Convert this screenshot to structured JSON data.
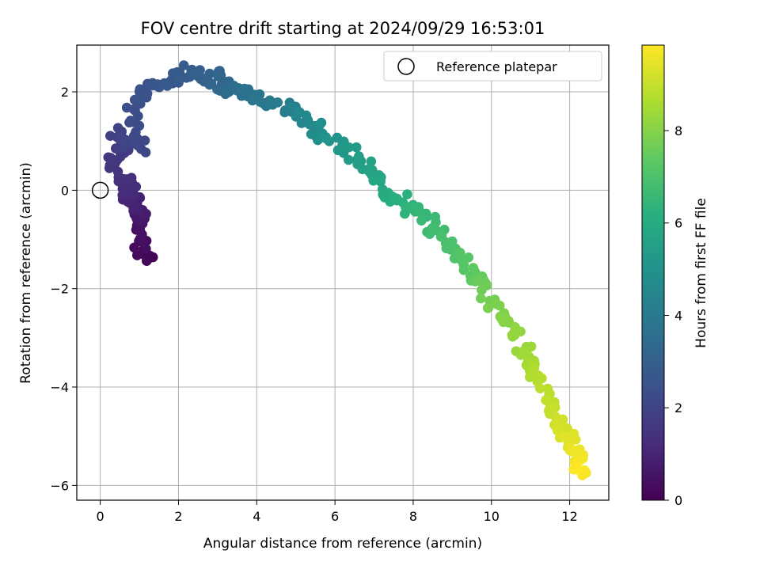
{
  "chart_data": {
    "type": "scatter",
    "title": "FOV centre drift starting at 2024/09/29 16:53:01",
    "xlabel": "Angular distance from reference (arcmin)",
    "ylabel": "Rotation from reference (arcmin)",
    "xlim": [
      -0.6,
      13.0
    ],
    "ylim": [
      -6.3,
      2.95
    ],
    "xticks": [
      0,
      2,
      4,
      6,
      8,
      10,
      12
    ],
    "yticks": [
      -6,
      -4,
      -2,
      0,
      2
    ],
    "grid": true,
    "legend": {
      "position": "top-right",
      "entries": [
        "Reference platepar"
      ]
    },
    "reference_point": {
      "x": 0,
      "y": 0
    },
    "colorbar": {
      "label": "Hours from first FF file",
      "range": [
        0,
        9.85
      ],
      "ticks": [
        0,
        2,
        4,
        6,
        8
      ],
      "colormap": "viridis"
    },
    "trajectory_keypoints": {
      "x": [
        1.35,
        1.0,
        1.1,
        0.9,
        0.7,
        0.8,
        0.3,
        0.6,
        0.4,
        1.05,
        0.8,
        1.2,
        1.8,
        2.3,
        2.9,
        3.2,
        3.6,
        4.3,
        5.0,
        5.5,
        6.0,
        6.7,
        7.2,
        7.7,
        8.2,
        8.7,
        9.2,
        9.6,
        10.0,
        10.5,
        10.9,
        11.2,
        11.6,
        11.9,
        12.2,
        12.3
      ],
      "y": [
        -1.38,
        -1.15,
        -0.55,
        -0.3,
        -0.1,
        0.2,
        0.5,
        0.8,
        1.15,
        0.85,
        1.6,
        2.05,
        2.2,
        2.45,
        2.3,
        2.1,
        2.0,
        1.8,
        1.6,
        1.3,
        1.0,
        0.55,
        0.05,
        -0.2,
        -0.55,
        -0.9,
        -1.3,
        -1.75,
        -2.3,
        -2.8,
        -3.3,
        -3.8,
        -4.5,
        -5.0,
        -5.4,
        -5.8
      ],
      "hours": [
        0.0,
        0.3,
        0.6,
        0.9,
        1.1,
        1.3,
        1.5,
        1.7,
        1.9,
        2.1,
        2.3,
        2.5,
        2.7,
        2.9,
        3.1,
        3.3,
        3.6,
        3.9,
        4.3,
        4.7,
        5.1,
        5.5,
        5.9,
        6.2,
        6.5,
        6.8,
        7.1,
        7.4,
        7.8,
        8.1,
        8.4,
        8.7,
        9.0,
        9.3,
        9.6,
        9.85
      ]
    },
    "points_count": 420
  }
}
